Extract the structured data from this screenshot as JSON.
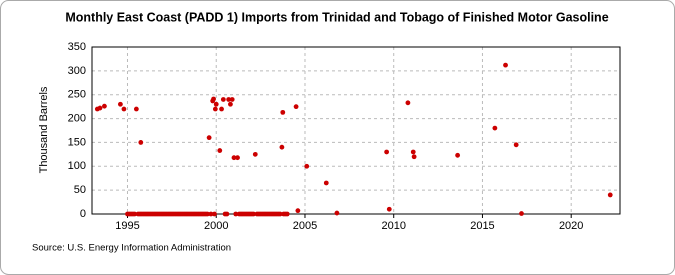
{
  "chart_data": {
    "type": "scatter",
    "title": "Monthly East Coast (PADD 1) Imports from Trinidad and Tobago of Finished Motor Gasoline",
    "y_label": "Thousand Barrels",
    "source": "Source: U.S. Energy Information Administration",
    "color": "#cc0000",
    "grid": true,
    "xlim": [
      1993,
      2022.75
    ],
    "ylim": [
      0,
      350
    ],
    "xticks": [
      1995,
      2000,
      2005,
      2010,
      2015,
      2020
    ],
    "yticks": [
      0,
      50,
      100,
      150,
      200,
      250,
      300,
      350
    ],
    "x": [
      1993.3,
      1993.45,
      1993.7,
      1994.6,
      1994.8,
      1995.5,
      1995.75,
      1999.6,
      1999.8,
      1999.85,
      1999.95,
      2000.0,
      2000.2,
      2000.3,
      2000.4,
      2000.7,
      2000.8,
      2000.9,
      2001.0,
      2001.2,
      2002.2,
      2003.7,
      2003.75,
      2004.5,
      2004.6,
      2005.1,
      2006.2,
      2006.8,
      2009.6,
      2009.75,
      2010.8,
      2011.1,
      2011.15,
      2013.6,
      2015.7,
      2016.3,
      2016.9,
      2017.2,
      2022.2,
      1995.0,
      1995.1,
      1995.2,
      1995.3,
      1995.4,
      1995.6,
      1995.7,
      1995.8,
      1995.9,
      1996.0,
      1996.1,
      1996.2,
      1996.3,
      1996.4,
      1996.5,
      1996.6,
      1996.7,
      1996.8,
      1996.9,
      1997.0,
      1997.1,
      1997.2,
      1997.3,
      1997.4,
      1997.5,
      1997.6,
      1997.7,
      1997.8,
      1997.9,
      1998.0,
      1998.1,
      1998.2,
      1998.3,
      1998.4,
      1998.5,
      1998.6,
      1998.7,
      1998.8,
      1998.9,
      1999.0,
      1999.1,
      1999.2,
      1999.3,
      1999.4,
      1999.5,
      1999.7,
      1999.9,
      2000.5,
      2000.6,
      2001.1,
      2001.3,
      2001.4,
      2001.5,
      2001.6,
      2001.7,
      2001.8,
      2001.9,
      2002.0,
      2002.1,
      2002.3,
      2002.4,
      2002.5,
      2002.6,
      2002.7,
      2002.8,
      2002.9,
      2003.0,
      2003.1,
      2003.2,
      2003.3,
      2003.4,
      2003.5,
      2003.6,
      2003.8,
      2003.9,
      2004.0
    ],
    "values": [
      220,
      222,
      226,
      230,
      220,
      220,
      150,
      160,
      237,
      241,
      220,
      230,
      133,
      220,
      240,
      240,
      230,
      240,
      118,
      118,
      125,
      140,
      213,
      225,
      7,
      100,
      65,
      2,
      130,
      10,
      233,
      130,
      120,
      123,
      180,
      312,
      145,
      1,
      40,
      0,
      0,
      0,
      0,
      0,
      0,
      0,
      0,
      0,
      0,
      0,
      0,
      0,
      0,
      0,
      0,
      0,
      0,
      0,
      0,
      0,
      0,
      0,
      0,
      0,
      0,
      0,
      0,
      0,
      0,
      0,
      0,
      0,
      0,
      0,
      0,
      0,
      0,
      0,
      0,
      0,
      0,
      0,
      0,
      0,
      0,
      0,
      0,
      0,
      0,
      0,
      0,
      0,
      0,
      0,
      0,
      0,
      0,
      0,
      0,
      0,
      0,
      0,
      0,
      0,
      0,
      0,
      0,
      0,
      0,
      0,
      0,
      0,
      0,
      0,
      0
    ]
  }
}
